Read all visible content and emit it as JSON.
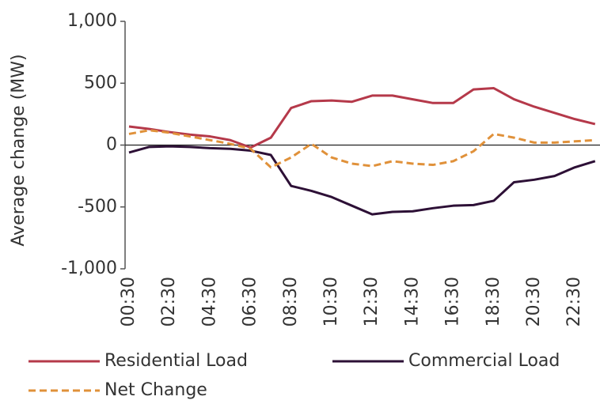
{
  "chart_data": {
    "type": "line",
    "ylabel": "Average change (MW)",
    "categories": [
      "00:30",
      null,
      "02:30",
      null,
      "04:30",
      null,
      "06:30",
      null,
      "08:30",
      null,
      "10:30",
      null,
      "12:30",
      null,
      "14:30",
      null,
      "16:30",
      null,
      "18:30",
      null,
      "20:30",
      null,
      "22:30",
      null
    ],
    "series": [
      {
        "name": "Residential Load",
        "color": "#b5394a",
        "dashed": false,
        "values": [
          150,
          130,
          105,
          85,
          70,
          40,
          -20,
          60,
          300,
          355,
          360,
          350,
          400,
          400,
          370,
          340,
          340,
          450,
          460,
          370,
          310,
          260,
          210,
          170
        ]
      },
      {
        "name": "Commercial Load",
        "color": "#2d1036",
        "dashed": false,
        "values": [
          -60,
          -15,
          -10,
          -15,
          -25,
          -30,
          -45,
          -80,
          -330,
          -370,
          -420,
          -490,
          -560,
          -540,
          -535,
          -510,
          -490,
          -485,
          -450,
          -300,
          -280,
          -250,
          -180,
          -130
        ]
      },
      {
        "name": "Net Change",
        "color": "#e0913a",
        "dashed": true,
        "values": [
          90,
          120,
          100,
          70,
          40,
          10,
          -30,
          -180,
          -100,
          10,
          -100,
          -150,
          -170,
          -130,
          -150,
          -160,
          -130,
          -50,
          90,
          60,
          20,
          20,
          30,
          40
        ]
      }
    ],
    "ylim": [
      -1000,
      1000
    ],
    "yticks": [
      {
        "value": -1000,
        "label": "-1,000"
      },
      -500,
      0,
      500,
      {
        "value": 1000,
        "label": "1,000"
      }
    ],
    "zero_line": true
  }
}
